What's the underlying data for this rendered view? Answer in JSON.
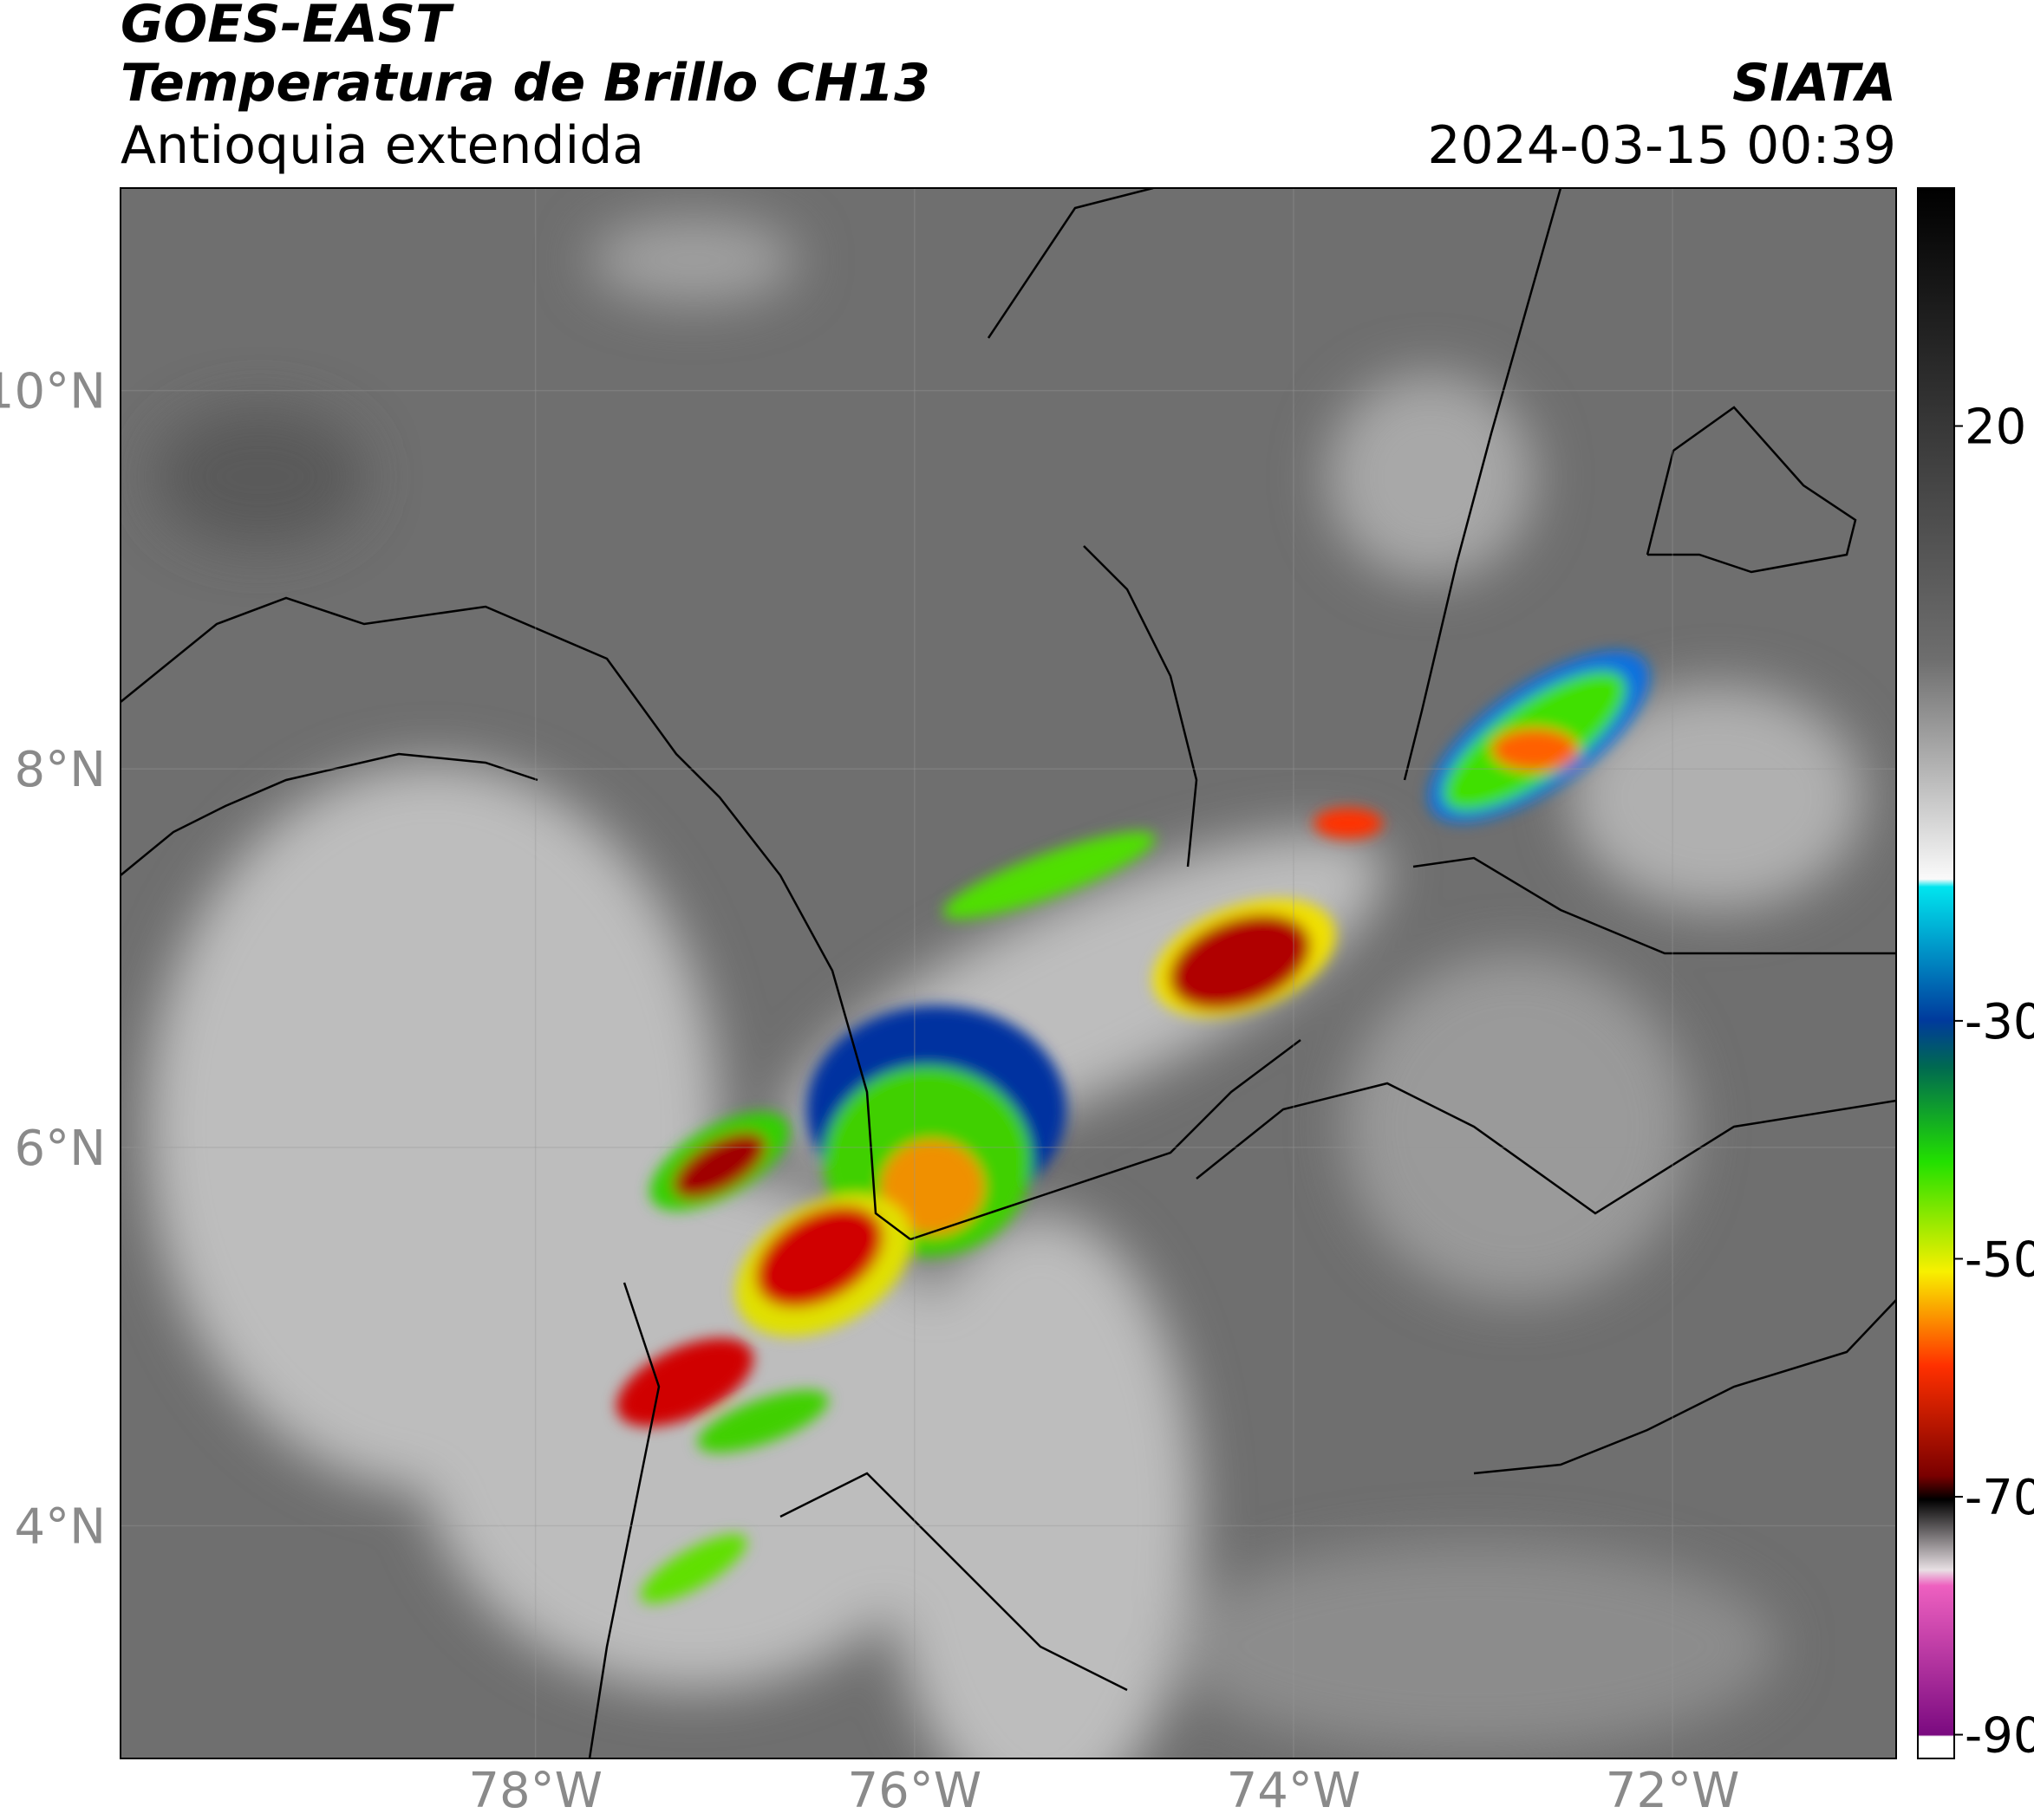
{
  "header": {
    "title": "GOES-EAST",
    "subtitle": "Temperatura de Brillo CH13",
    "region": "Antioquia extendida",
    "source": "SIATA",
    "datetime": "2024-03-15 00:39"
  },
  "map": {
    "xlim": [
      -80.19,
      -70.82
    ],
    "ylim": [
      2.77,
      11.07
    ],
    "xticks": [
      {
        "value": -78,
        "label": "78°W"
      },
      {
        "value": -76,
        "label": "76°W"
      },
      {
        "value": -74,
        "label": "74°W"
      },
      {
        "value": -72,
        "label": "72°W"
      }
    ],
    "yticks": [
      {
        "value": 10,
        "label": "10°N"
      },
      {
        "value": 8,
        "label": "8°N"
      },
      {
        "value": 6,
        "label": "6°N"
      },
      {
        "value": 4,
        "label": "4°N"
      }
    ],
    "grid": true
  },
  "colorbar": {
    "lim": [
      -92,
      40
    ],
    "ticks": [
      20,
      -30,
      -50,
      -70,
      -90
    ]
  }
}
